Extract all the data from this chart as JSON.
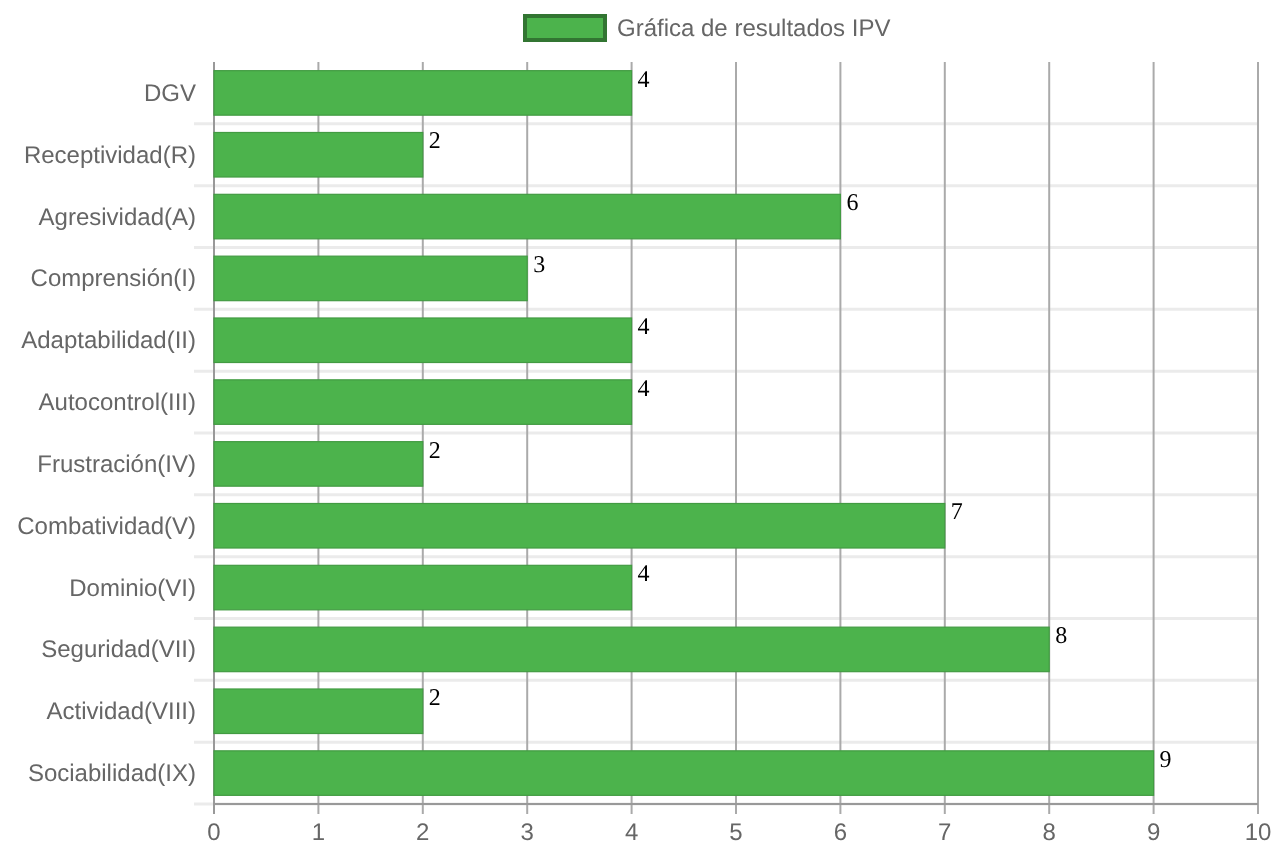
{
  "chart_data": {
    "type": "bar",
    "orientation": "horizontal",
    "categories": [
      "DGV",
      "Receptividad(R)",
      "Agresividad(A)",
      "Comprensión(I)",
      "Adaptabilidad(II)",
      "Autocontrol(III)",
      "Frustración(IV)",
      "Combatividad(V)",
      "Dominio(VI)",
      "Seguridad(VII)",
      "Actividad(VIII)",
      "Sociabilidad(IX)"
    ],
    "series": [
      {
        "name": "Gráfica de resultados IPV",
        "color": "#4cb34c",
        "values": [
          4,
          2,
          6,
          3,
          4,
          4,
          2,
          7,
          4,
          8,
          2,
          9
        ]
      }
    ],
    "xlim": [
      0,
      10
    ],
    "xticks": [
      0,
      1,
      2,
      3,
      4,
      5,
      6,
      7,
      8,
      9,
      10
    ],
    "grid": true,
    "legend": "top",
    "data_labels": true
  }
}
